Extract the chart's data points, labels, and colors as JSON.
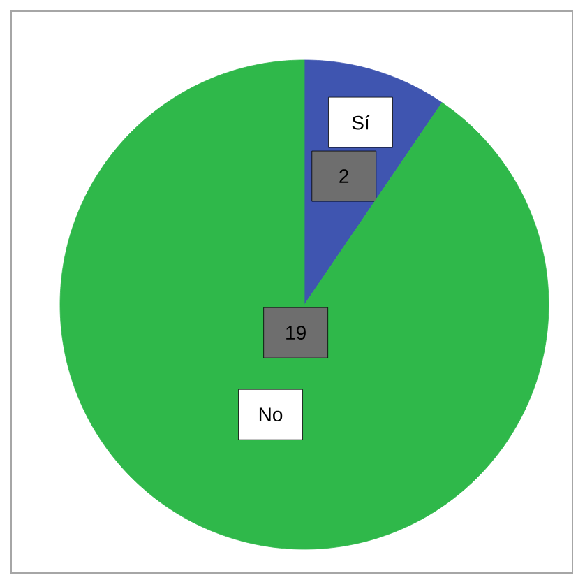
{
  "chart_data": {
    "type": "pie",
    "categories": [
      "Sí",
      "No"
    ],
    "values": [
      2,
      19
    ],
    "colors": [
      "#3f55b0",
      "#2fb84a"
    ],
    "data_labels": true
  }
}
